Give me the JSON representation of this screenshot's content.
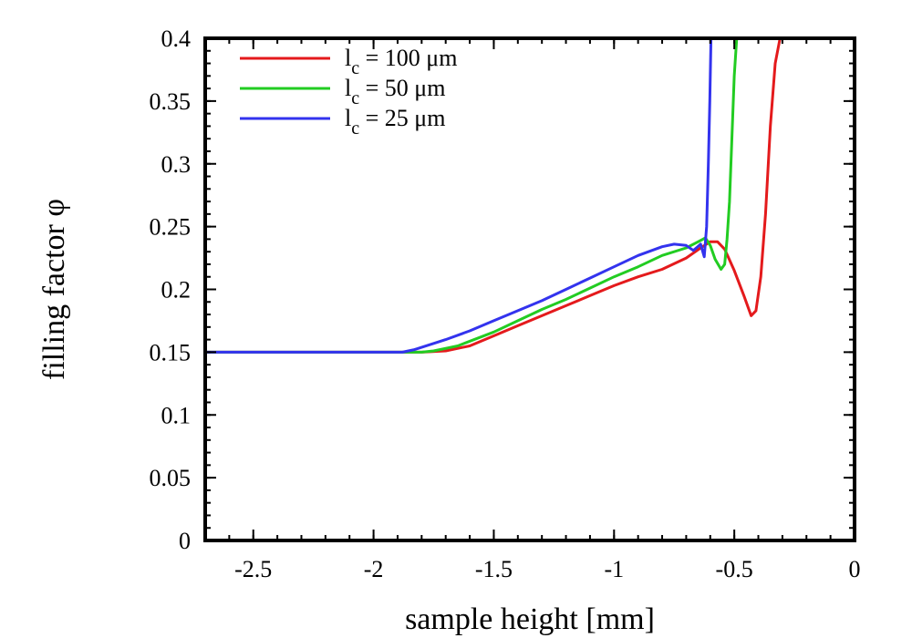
{
  "chart_data": {
    "type": "line",
    "title": "",
    "xlabel": "sample height [mm]",
    "ylabel": "filling factor φ",
    "xlim": [
      -2.7,
      0
    ],
    "ylim": [
      0,
      0.4
    ],
    "x_ticks": [
      "-2.5",
      "-2",
      "-1.5",
      "-1",
      "-0.5",
      "0"
    ],
    "y_ticks": [
      "0",
      "0.05",
      "0.1",
      "0.15",
      "0.2",
      "0.25",
      "0.3",
      "0.35",
      "0.4"
    ],
    "grid": false,
    "legend_position": "top-left",
    "series": [
      {
        "name": "l_c = 100 μm",
        "legend": {
          "base": "l",
          "sub": "c",
          "rest": " = 100 μm"
        },
        "color": "#e41a1c",
        "points": [
          [
            -2.7,
            0.15
          ],
          [
            -1.8,
            0.15
          ],
          [
            -1.7,
            0.151
          ],
          [
            -1.6,
            0.155
          ],
          [
            -1.5,
            0.163
          ],
          [
            -1.4,
            0.171
          ],
          [
            -1.3,
            0.179
          ],
          [
            -1.2,
            0.187
          ],
          [
            -1.1,
            0.195
          ],
          [
            -1.0,
            0.203
          ],
          [
            -0.9,
            0.21
          ],
          [
            -0.8,
            0.216
          ],
          [
            -0.7,
            0.225
          ],
          [
            -0.64,
            0.233
          ],
          [
            -0.6,
            0.238
          ],
          [
            -0.57,
            0.238
          ],
          [
            -0.54,
            0.232
          ],
          [
            -0.5,
            0.215
          ],
          [
            -0.46,
            0.195
          ],
          [
            -0.43,
            0.179
          ],
          [
            -0.41,
            0.183
          ],
          [
            -0.39,
            0.21
          ],
          [
            -0.37,
            0.26
          ],
          [
            -0.35,
            0.33
          ],
          [
            -0.33,
            0.38
          ],
          [
            -0.31,
            0.4
          ]
        ]
      },
      {
        "name": "l_c = 50 μm",
        "legend": {
          "base": "l",
          "sub": "c",
          "rest": " = 50 μm"
        },
        "color": "#22cc22",
        "points": [
          [
            -2.7,
            0.15
          ],
          [
            -1.8,
            0.15
          ],
          [
            -1.75,
            0.151
          ],
          [
            -1.65,
            0.155
          ],
          [
            -1.5,
            0.166
          ],
          [
            -1.4,
            0.175
          ],
          [
            -1.3,
            0.184
          ],
          [
            -1.2,
            0.192
          ],
          [
            -1.1,
            0.201
          ],
          [
            -1.0,
            0.21
          ],
          [
            -0.9,
            0.218
          ],
          [
            -0.8,
            0.227
          ],
          [
            -0.7,
            0.233
          ],
          [
            -0.65,
            0.238
          ],
          [
            -0.62,
            0.241
          ],
          [
            -0.6,
            0.235
          ],
          [
            -0.58,
            0.224
          ],
          [
            -0.555,
            0.216
          ],
          [
            -0.54,
            0.22
          ],
          [
            -0.53,
            0.24
          ],
          [
            -0.52,
            0.27
          ],
          [
            -0.51,
            0.32
          ],
          [
            -0.5,
            0.37
          ],
          [
            -0.49,
            0.4
          ]
        ]
      },
      {
        "name": "l_c = 25 μm",
        "legend": {
          "base": "l",
          "sub": "c",
          "rest": " = 25 μm"
        },
        "color": "#3333ee",
        "points": [
          [
            -2.7,
            0.15
          ],
          [
            -1.88,
            0.15
          ],
          [
            -1.83,
            0.152
          ],
          [
            -1.7,
            0.16
          ],
          [
            -1.6,
            0.167
          ],
          [
            -1.5,
            0.175
          ],
          [
            -1.4,
            0.183
          ],
          [
            -1.3,
            0.191
          ],
          [
            -1.2,
            0.2
          ],
          [
            -1.1,
            0.209
          ],
          [
            -1.0,
            0.218
          ],
          [
            -0.9,
            0.227
          ],
          [
            -0.8,
            0.234
          ],
          [
            -0.75,
            0.236
          ],
          [
            -0.7,
            0.235
          ],
          [
            -0.67,
            0.231
          ],
          [
            -0.64,
            0.236
          ],
          [
            -0.625,
            0.226
          ],
          [
            -0.615,
            0.25
          ],
          [
            -0.608,
            0.3
          ],
          [
            -0.602,
            0.35
          ],
          [
            -0.597,
            0.4
          ]
        ]
      }
    ]
  }
}
